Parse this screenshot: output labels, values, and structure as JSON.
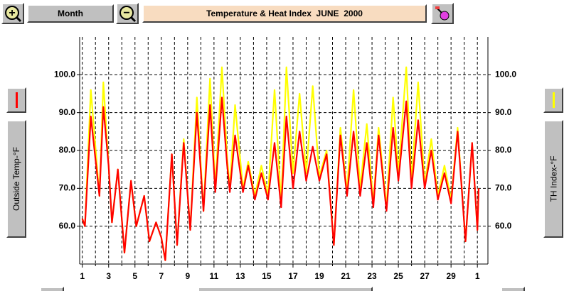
{
  "toolbar": {
    "zoom_in": "+",
    "period": "Month",
    "zoom_out": "−"
  },
  "chart_data": {
    "type": "line",
    "title": "Temperature & Heat Index  JUNE  2000",
    "ylabel": "Outside Temp-°F",
    "y2label": "TH Index-°F",
    "x": [
      1.0,
      1.2,
      1.65,
      2.3,
      2.6,
      3.0,
      3.25,
      3.7,
      4.2,
      4.7,
      5.1,
      5.7,
      6.1,
      6.6,
      7.0,
      7.3,
      7.8,
      8.2,
      8.7,
      9.2,
      9.7,
      10.2,
      10.7,
      11.1,
      11.6,
      12.0,
      12.2,
      12.6,
      13.2,
      13.6,
      14.1,
      14.6,
      15.1,
      15.6,
      16.1,
      16.5,
      17.0,
      17.5,
      18.0,
      18.5,
      19.0,
      19.55,
      20.1,
      20.6,
      21.1,
      21.6,
      22.1,
      22.6,
      23.1,
      23.5,
      24.1,
      24.6,
      25.0,
      25.6,
      26.0,
      26.5,
      27.0,
      27.5,
      28.0,
      28.5,
      29.0,
      29.5,
      30.1,
      30.6,
      31.0,
      31.1
    ],
    "series": [
      {
        "name": "TH Index-°F",
        "color": "#ffff00",
        "axis": "y2",
        "values": [
          62,
          60,
          96,
          68,
          98,
          76,
          61,
          75,
          53,
          72,
          60,
          68,
          56,
          61,
          57,
          51,
          79,
          55,
          83,
          59,
          94,
          64,
          99,
          70,
          102,
          78,
          70,
          92,
          70,
          77,
          68,
          76,
          68,
          96,
          66,
          102,
          74,
          95,
          74,
          97,
          73,
          80,
          55,
          86,
          69,
          96,
          70,
          87,
          66,
          86,
          65,
          94,
          74,
          102,
          72,
          98,
          71,
          83,
          68,
          76,
          67,
          86,
          56,
          82,
          59,
          70
        ]
      },
      {
        "name": "Outside Temp-°F",
        "color": "#ff0000",
        "values": [
          62,
          60,
          89,
          68,
          91.5,
          76,
          61,
          75,
          53,
          72,
          60,
          68,
          56,
          61,
          57,
          51,
          79,
          55,
          82,
          59,
          90,
          64,
          92,
          69,
          94,
          76,
          69,
          84,
          69,
          76,
          67,
          74,
          67,
          82,
          65,
          89,
          70,
          85,
          72,
          81,
          72,
          79,
          55,
          84,
          68,
          85,
          68,
          82,
          65,
          84,
          64,
          86,
          72,
          93,
          70,
          88,
          70,
          80,
          67,
          74,
          66,
          85,
          56,
          82,
          59,
          70
        ]
      }
    ],
    "xlim": [
      0.8,
      31.8
    ],
    "xticks": [
      1,
      3,
      5,
      7,
      9,
      11,
      13,
      15,
      17,
      19,
      21,
      23,
      25,
      27,
      29,
      {
        "value": 31,
        "label": "1"
      }
    ],
    "x_minor_ticks": [
      2,
      4,
      6,
      8,
      10,
      12,
      14,
      16,
      18,
      20,
      22,
      24,
      26,
      28,
      30
    ],
    "ylim": [
      50,
      110
    ],
    "yticks": [
      {
        "value": 60,
        "label": "60.0"
      },
      {
        "value": 70,
        "label": "70.0"
      },
      {
        "value": 80,
        "label": "80.0"
      },
      {
        "value": 90,
        "label": "90.0"
      },
      {
        "value": 100,
        "label": "100.0"
      }
    ],
    "y2lim": [
      50,
      110
    ],
    "y2ticks": [
      {
        "value": 60,
        "label": "60.0"
      },
      {
        "value": 70,
        "label": "70.0"
      },
      {
        "value": 80,
        "label": "80.0"
      },
      {
        "value": 90,
        "label": "90.0"
      },
      {
        "value": 100,
        "label": "100.0"
      }
    ],
    "grid": true
  }
}
